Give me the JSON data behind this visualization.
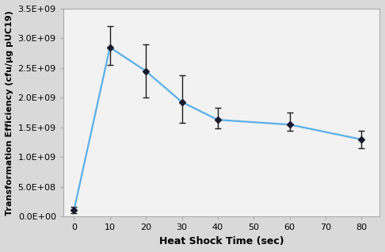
{
  "x": [
    0,
    10,
    20,
    30,
    40,
    60,
    80
  ],
  "y": [
    110000000.0,
    2850000000.0,
    2450000000.0,
    1930000000.0,
    1630000000.0,
    1550000000.0,
    1300000000.0
  ],
  "yerr_upper": [
    50000000.0,
    350000000.0,
    450000000.0,
    450000000.0,
    200000000.0,
    200000000.0,
    150000000.0
  ],
  "yerr_lower": [
    50000000.0,
    300000000.0,
    450000000.0,
    350000000.0,
    150000000.0,
    100000000.0,
    150000000.0
  ],
  "line_color": "#5BAFE8",
  "marker_color": "#1a1a2e",
  "ecolor": "#1a1a1a",
  "marker_size": 4,
  "line_width": 1.6,
  "xlabel": "Heat Shock Time (sec)",
  "ylabel": "Transformation Efficiency (cfu/μg pUC19)",
  "xlim": [
    -3,
    85
  ],
  "ylim": [
    0,
    3500000000.0
  ],
  "yticks": [
    0,
    500000000.0,
    1000000000.0,
    1500000000.0,
    2000000000.0,
    2500000000.0,
    3000000000.0,
    3500000000.0
  ],
  "ytick_labels": [
    "0.0E+00",
    "5.0E+08",
    "1.0E+09",
    "1.5E+09",
    "2.0E+09",
    "2.5E+09",
    "3.0E+09",
    "3.5E+09"
  ],
  "xticks": [
    0,
    10,
    20,
    30,
    40,
    50,
    60,
    70,
    80
  ],
  "bg_color": "#d9d9d9",
  "plot_bg_color": "#f2f2f2",
  "xlabel_fontsize": 9,
  "ylabel_fontsize": 8,
  "tick_fontsize": 8
}
